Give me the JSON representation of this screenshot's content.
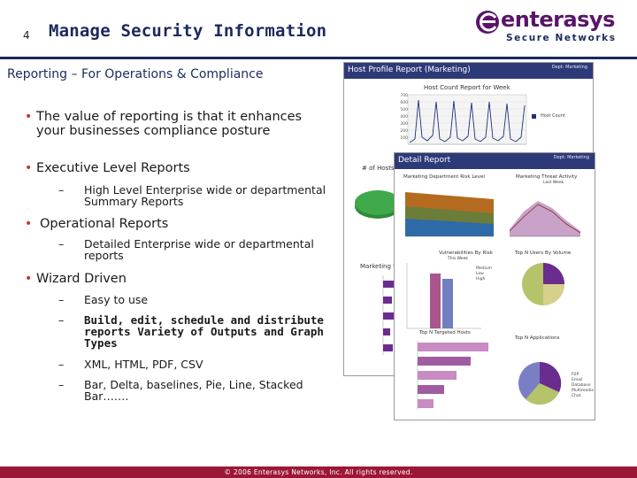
{
  "slide": {
    "number": "4",
    "title": "Manage Security Information",
    "subtitle": "Reporting – For Operations & Compliance"
  },
  "logo": {
    "wordmark": "enterasys",
    "tagline": "Secure Networks"
  },
  "bullets": [
    {
      "text": "The value of reporting is that it enhances your businesses compliance posture",
      "subs": []
    },
    {
      "text": "Executive Level Reports",
      "subs": [
        "High Level Enterprise wide or departmental Summary Reports"
      ]
    },
    {
      "text": "Operational Reports",
      "subs": [
        "Detailed Enterprise wide or departmental reports"
      ]
    },
    {
      "text": "Wizard Driven",
      "subs": [
        "Easy to use",
        "Build, edit, schedule and distribute reports Variety of Outputs and Graph Types",
        "XML, HTML, PDF, CSV",
        "Bar, Delta, baselines, Pie, Line, Stacked Bar……."
      ]
    }
  ],
  "screenshots": {
    "host_profile": {
      "header": "Host Profile Report (Marketing)",
      "meta_line1": "Dept: Marketing",
      "chart1_title": "Host Count Report for Week",
      "chart1_legend": "Host Count",
      "chart1_y_ticks": [
        "700",
        "600",
        "500",
        "400",
        "300",
        "200",
        "100",
        "0"
      ],
      "chart2_title": "# of Hosts",
      "chart3_title": "Marketing S"
    },
    "detail_report": {
      "header": "Detail Report",
      "meta_line1": "Dept: Marketing",
      "risk_title": "Marketing Department Risk Level",
      "threat_title": "Marketing Threat Activity",
      "threat_subtitle": "Last Week",
      "vuln_title": "Vulnerabilities By Risk",
      "vuln_subtitle": "This Week",
      "vuln_legend": [
        "Medium",
        "Low",
        "High"
      ],
      "targeted_title": "Top N Targeted Hosts",
      "users_title": "Top N Users By Volume",
      "apps_title": "Top N Applications",
      "apps_legend": [
        "P2P",
        "Email",
        "Database",
        "Multimedia",
        "Chat"
      ]
    }
  },
  "footer": {
    "text": "© 2006 Enterasys Networks, Inc. All rights reserved."
  },
  "colors": {
    "title": "#1b2a5c",
    "bullet": "#c0392b",
    "footer": "#9c1737",
    "logo": "#5a1468",
    "report_header": "#2e3a78"
  }
}
